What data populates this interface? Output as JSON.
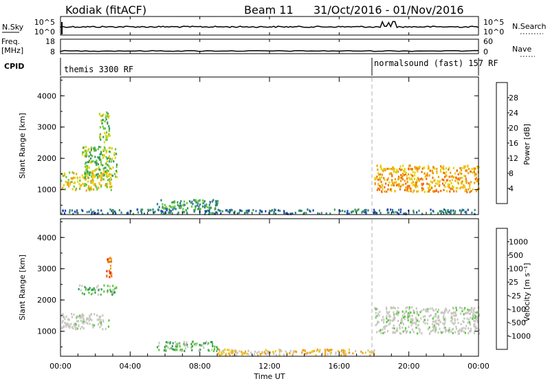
{
  "header": {
    "station": "Kodiak (fitACF)",
    "beam": "Beam 11",
    "dates": "31/Oct/2016 - 01/Nov/2016"
  },
  "strips": {
    "nsky": {
      "label": "N.Sky",
      "left_top": "10^5",
      "left_bottom": "10^0",
      "right_top": "10^5",
      "right_bottom": "10^0",
      "right_label": "N.Search"
    },
    "freq": {
      "label_line1": "Freq.",
      "label_line2": "[MHz]",
      "left_top": "18",
      "left_bottom": "8",
      "right_top": "60",
      "right_bottom": "0",
      "right_label": "Nave"
    },
    "cpid": {
      "label": "CPID",
      "mode1": "themis 3300 RF",
      "mode2": "normalsound (fast) 157 RF"
    }
  },
  "colorbars": {
    "power": {
      "label": "Power [dB]",
      "ticks": [
        "4",
        "8",
        "12",
        "16",
        "20",
        "24",
        "28"
      ],
      "colors": [
        "#0a1ee6",
        "#1e46b4",
        "#2d7a8c",
        "#3a9a5a",
        "#6ac83c",
        "#e6d20a",
        "#f0a00a",
        "#f06e0a",
        "#e6320a",
        "#ff0000"
      ]
    },
    "velocity": {
      "label": "Velocity [m s⁻¹]",
      "ticks": [
        "1000",
        "500",
        "100",
        "25",
        "-25",
        "-100",
        "-500",
        "-1000"
      ],
      "colors": [
        "#1e3cb4",
        "#2d6ec8",
        "#3a9a5a",
        "#5ac83c",
        "#c8c8c0",
        "#f0c81e",
        "#f0a01e",
        "#f06e0a",
        "#e6320a",
        "#ff0000"
      ]
    }
  },
  "chart_data": [
    {
      "type": "heatmap",
      "name": "power",
      "ylabel": "Slant Range [km]",
      "yticks": [
        "1000",
        "2000",
        "3000",
        "4000"
      ],
      "ylim": [
        200,
        4600
      ],
      "xlim": [
        0,
        24
      ],
      "features": [
        {
          "x": [
            0.0,
            2.9
          ],
          "y": [
            1000,
            1600
          ],
          "level": 5
        },
        {
          "x": [
            1.2,
            3.2
          ],
          "y": [
            1400,
            2400
          ],
          "level": 4
        },
        {
          "x": [
            2.2,
            2.8
          ],
          "y": [
            2500,
            3500
          ],
          "level": 4
        },
        {
          "x": [
            5.5,
            9.0
          ],
          "y": [
            400,
            700
          ],
          "level": 3
        },
        {
          "x": [
            18.0,
            24.0
          ],
          "y": [
            950,
            1800
          ],
          "level": 6
        },
        {
          "x": [
            0.0,
            24.0
          ],
          "y": [
            250,
            400
          ],
          "level": 2
        }
      ]
    },
    {
      "type": "heatmap",
      "name": "velocity",
      "ylabel": "Slant Range [km]",
      "yticks": [
        "1000",
        "2000",
        "3000",
        "4000"
      ],
      "ylim": [
        200,
        4600
      ],
      "xlim": [
        0,
        24
      ],
      "features": [
        {
          "x": [
            0.0,
            2.8
          ],
          "y": [
            1100,
            1600
          ],
          "level": 4
        },
        {
          "x": [
            2.6,
            2.9
          ],
          "y": [
            2700,
            3500
          ],
          "level": 7
        },
        {
          "x": [
            1.0,
            3.2
          ],
          "y": [
            2200,
            2500
          ],
          "level": 3
        },
        {
          "x": [
            5.5,
            9.0
          ],
          "y": [
            400,
            700
          ],
          "level": 3
        },
        {
          "x": [
            18.0,
            24.0
          ],
          "y": [
            950,
            1800
          ],
          "level": 4
        },
        {
          "x": [
            9.0,
            18.0
          ],
          "y": [
            250,
            450
          ],
          "level": 5
        }
      ]
    }
  ],
  "xaxis": {
    "label": "Time UT",
    "ticks": [
      "00:00",
      "04:00",
      "08:00",
      "12:00",
      "16:00",
      "20:00",
      "00:00"
    ]
  }
}
